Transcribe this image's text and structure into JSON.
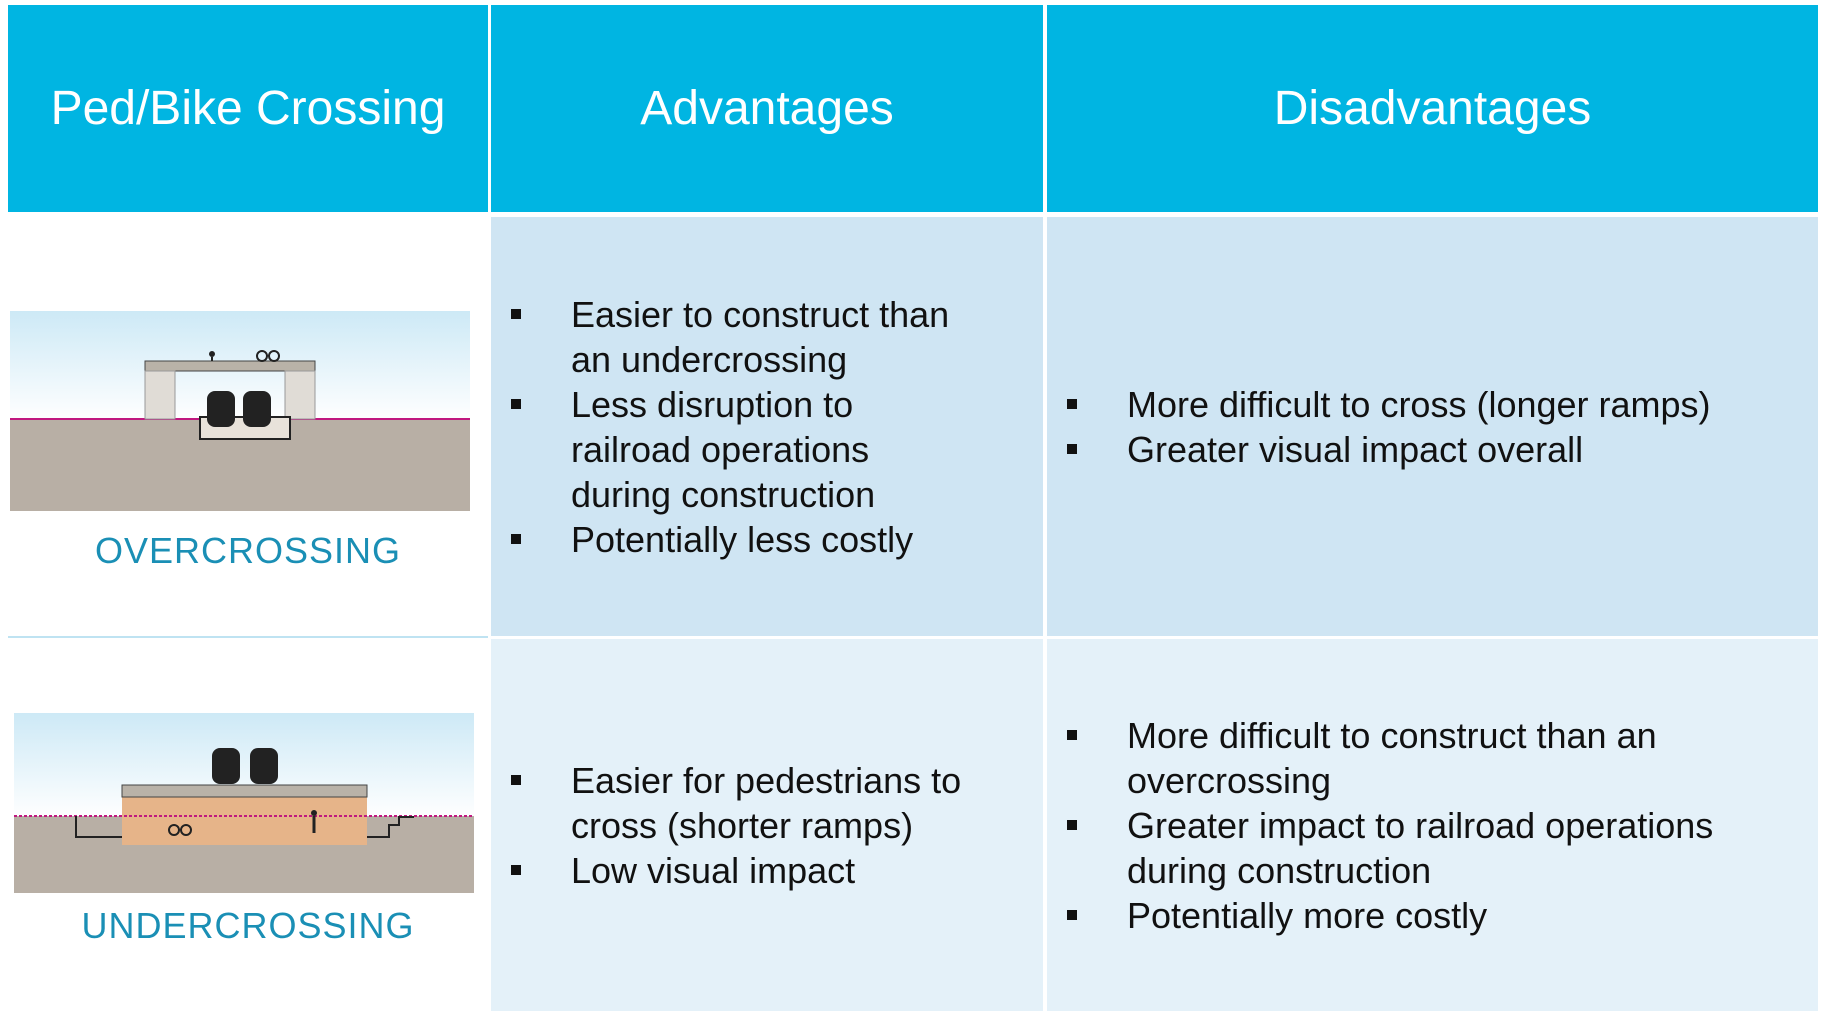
{
  "table": {
    "header": [
      "Ped/Bike Crossing",
      "Advantages",
      "Disadvantages"
    ],
    "rows": [
      {
        "label": "OVERCROSSING",
        "advantages": [
          "Easier to construct than an undercrossing",
          "Less disruption to railroad operations during construction",
          "Potentially less costly"
        ],
        "disadvantages": [
          "More difficult to cross (longer ramps)",
          "Greater visual impact overall"
        ]
      },
      {
        "label": "UNDERCROSSING",
        "advantages": [
          "Easier for pedestrians to cross (shorter ramps)",
          "Low visual impact"
        ],
        "disadvantages": [
          "More difficult to construct than an overcrossing",
          "Greater impact to railroad operations during construction",
          "Potentially more costly"
        ]
      }
    ]
  }
}
